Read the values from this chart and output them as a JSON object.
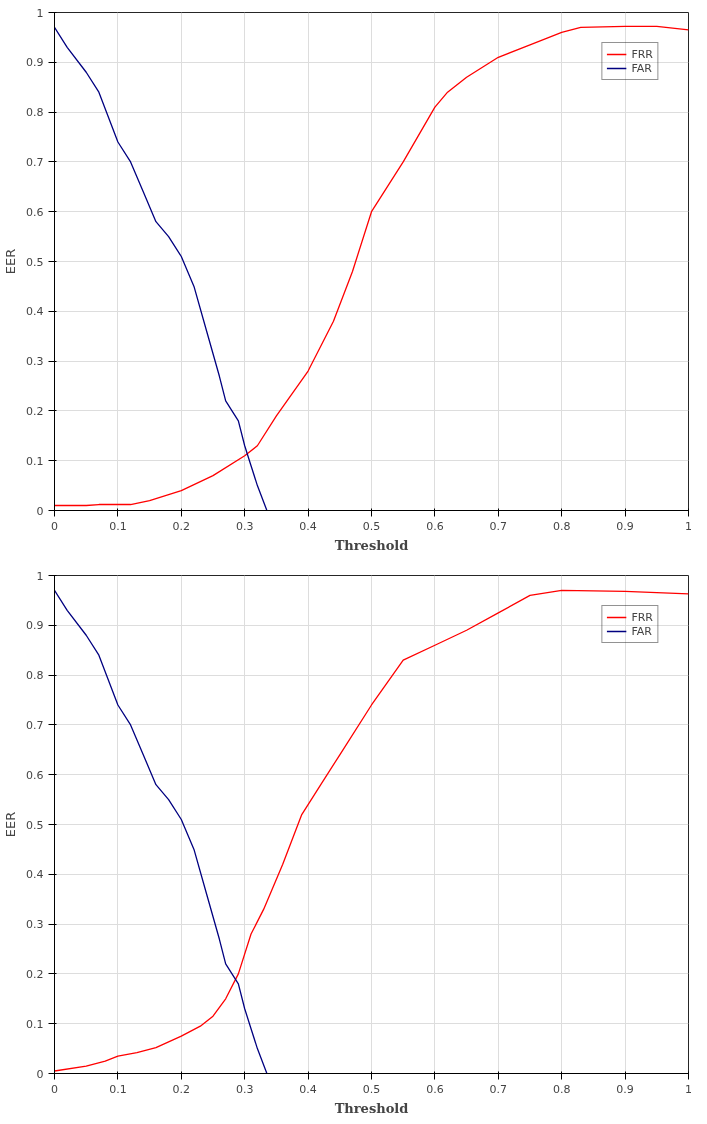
{
  "chart_data": [
    {
      "type": "line",
      "xlabel": "Threshold",
      "ylabel": "EER",
      "xlim": [
        0,
        1
      ],
      "ylim": [
        0,
        1
      ],
      "xticks": [
        0,
        0.1,
        0.2,
        0.3,
        0.4,
        0.5,
        0.6,
        0.7,
        0.8,
        0.9,
        1
      ],
      "yticks": [
        0,
        0.1,
        0.2,
        0.3,
        0.4,
        0.5,
        0.6,
        0.7,
        0.8,
        0.9,
        1
      ],
      "grid": true,
      "legend": "top right",
      "line_style": "solid",
      "series": [
        {
          "name": "FRR",
          "color": "#ff0000",
          "x": [
            0,
            0.05,
            0.07,
            0.12,
            0.15,
            0.2,
            0.25,
            0.3,
            0.32,
            0.35,
            0.4,
            0.44,
            0.47,
            0.5,
            0.55,
            0.6,
            0.62,
            0.65,
            0.7,
            0.75,
            0.8,
            0.83,
            0.9,
            0.95,
            1
          ],
          "values": [
            0.01,
            0.01,
            0.012,
            0.012,
            0.02,
            0.04,
            0.07,
            0.11,
            0.13,
            0.19,
            0.28,
            0.38,
            0.48,
            0.6,
            0.7,
            0.81,
            0.84,
            0.87,
            0.91,
            0.935,
            0.96,
            0.97,
            0.972,
            0.972,
            0.965
          ]
        },
        {
          "name": "FAR",
          "color": "#000080",
          "x": [
            0,
            0.02,
            0.05,
            0.07,
            0.1,
            0.12,
            0.14,
            0.16,
            0.18,
            0.2,
            0.22,
            0.24,
            0.26,
            0.27,
            0.29,
            0.3,
            0.31,
            0.32,
            0.335
          ],
          "values": [
            0.97,
            0.93,
            0.88,
            0.84,
            0.74,
            0.7,
            0.64,
            0.58,
            0.55,
            0.51,
            0.45,
            0.36,
            0.27,
            0.22,
            0.18,
            0.13,
            0.09,
            0.05,
            0
          ]
        }
      ]
    },
    {
      "type": "line",
      "xlabel": "Threshold",
      "ylabel": "EER",
      "xlim": [
        0,
        1
      ],
      "ylim": [
        0,
        1
      ],
      "xticks": [
        0,
        0.1,
        0.2,
        0.3,
        0.4,
        0.5,
        0.6,
        0.7,
        0.8,
        0.9,
        1
      ],
      "yticks": [
        0,
        0.1,
        0.2,
        0.3,
        0.4,
        0.5,
        0.6,
        0.7,
        0.8,
        0.9,
        1
      ],
      "grid": true,
      "legend": "top right",
      "line_style": "solid",
      "series": [
        {
          "name": "FRR",
          "color": "#ff0000",
          "x": [
            0,
            0.05,
            0.08,
            0.1,
            0.13,
            0.16,
            0.2,
            0.23,
            0.25,
            0.27,
            0.29,
            0.31,
            0.33,
            0.36,
            0.39,
            0.42,
            0.45,
            0.5,
            0.55,
            0.6,
            0.65,
            0.7,
            0.75,
            0.8,
            0.9,
            1
          ],
          "values": [
            0.005,
            0.015,
            0.025,
            0.035,
            0.042,
            0.052,
            0.075,
            0.095,
            0.115,
            0.15,
            0.2,
            0.28,
            0.33,
            0.42,
            0.52,
            0.58,
            0.64,
            0.74,
            0.83,
            0.86,
            0.89,
            0.925,
            0.96,
            0.97,
            0.968,
            0.963
          ]
        },
        {
          "name": "FAR",
          "color": "#000080",
          "x": [
            0,
            0.02,
            0.05,
            0.07,
            0.1,
            0.12,
            0.14,
            0.16,
            0.18,
            0.2,
            0.22,
            0.24,
            0.26,
            0.27,
            0.29,
            0.3,
            0.31,
            0.32,
            0.335
          ],
          "values": [
            0.97,
            0.93,
            0.88,
            0.84,
            0.74,
            0.7,
            0.64,
            0.58,
            0.55,
            0.51,
            0.45,
            0.36,
            0.27,
            0.22,
            0.18,
            0.13,
            0.09,
            0.05,
            0
          ]
        }
      ]
    }
  ]
}
